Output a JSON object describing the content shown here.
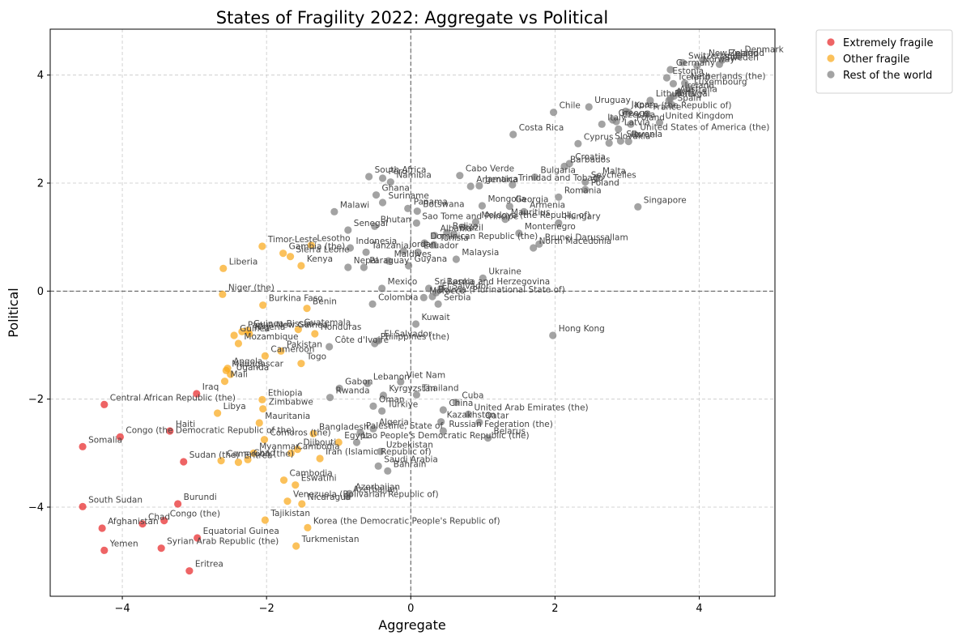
{
  "chart_data": {
    "type": "scatter",
    "title": "States of Fragility 2022: Aggregate vs Political",
    "xlabel": "Aggregate",
    "ylabel": "Political",
    "xlim": [
      -5.0,
      5.05
    ],
    "ylim": [
      -5.65,
      4.85
    ],
    "xticks": [
      -4,
      -2,
      0,
      2,
      4
    ],
    "yticks": [
      -4,
      -2,
      0,
      2,
      4
    ],
    "grid": true,
    "legend_position": "upper-right-outside",
    "zero_lines": true,
    "colors": {
      "Extremely fragile": "#e8282a",
      "Other fragile": "#f9a91c",
      "Rest of the world": "#808080"
    },
    "series": [
      {
        "name": "Extremely fragile",
        "color": "#e8282a",
        "points": [
          {
            "label": "Somalia",
            "x": -4.55,
            "y": -2.88
          },
          {
            "label": "South Sudan",
            "x": -4.55,
            "y": -3.99
          },
          {
            "label": "Central African Republic (the)",
            "x": -4.25,
            "y": -2.1
          },
          {
            "label": "Congo (the Democratic Republic of the)",
            "x": -4.03,
            "y": -2.7
          },
          {
            "label": "Afghanistan",
            "x": -4.28,
            "y": -4.39
          },
          {
            "label": "Yemen",
            "x": -4.25,
            "y": -4.8
          },
          {
            "label": "Chad",
            "x": -3.72,
            "y": -4.31
          },
          {
            "label": "Congo (the)",
            "x": -3.42,
            "y": -4.25
          },
          {
            "label": "Syrian Arab Republic (the)",
            "x": -3.46,
            "y": -4.76
          },
          {
            "label": "Haiti",
            "x": -3.34,
            "y": -2.59
          },
          {
            "label": "Sudan (the)",
            "x": -3.15,
            "y": -3.16
          },
          {
            "label": "Burundi",
            "x": -3.23,
            "y": -3.94
          },
          {
            "label": "Iraq",
            "x": -2.97,
            "y": -1.9
          },
          {
            "label": "Eritrea",
            "x": -3.07,
            "y": -5.18
          },
          {
            "label": "Equatorial Guinea",
            "x": -2.96,
            "y": -4.57
          }
        ]
      },
      {
        "name": "Other fragile",
        "color": "#f9a91c",
        "points": [
          {
            "label": "Liberia",
            "x": -2.6,
            "y": 0.42
          },
          {
            "label": "Niger (the)",
            "x": -2.61,
            "y": -0.06
          },
          {
            "label": "Timor-Leste",
            "x": -2.06,
            "y": 0.83
          },
          {
            "label": "Gambia (the)",
            "x": -1.77,
            "y": 0.7
          },
          {
            "label": "Lesotho",
            "x": -1.38,
            "y": 0.85
          },
          {
            "label": "Sierra Leone",
            "x": -1.67,
            "y": 0.64
          },
          {
            "label": "Kenya",
            "x": -1.52,
            "y": 0.47
          },
          {
            "label": "Burkina Faso",
            "x": -2.05,
            "y": -0.26
          },
          {
            "label": "Benin",
            "x": -1.44,
            "y": -0.32
          },
          {
            "label": "Guinea-Bissau",
            "x": -2.26,
            "y": -0.73
          },
          {
            "label": "Papua New Guinea",
            "x": -2.34,
            "y": -0.75
          },
          {
            "label": "Guinea",
            "x": -2.45,
            "y": -0.82
          },
          {
            "label": "Guatemala",
            "x": -1.56,
            "y": -0.71
          },
          {
            "label": "Mozambique",
            "x": -2.39,
            "y": -0.97
          },
          {
            "label": "Nigeria",
            "x": -2.24,
            "y": -0.79
          },
          {
            "label": "Honduras",
            "x": -1.33,
            "y": -0.79
          },
          {
            "label": "Cameroon",
            "x": -2.02,
            "y": -1.2
          },
          {
            "label": "Pakistan",
            "x": -1.8,
            "y": -1.11
          },
          {
            "label": "Togo",
            "x": -1.52,
            "y": -1.34
          },
          {
            "label": "Madagascar",
            "x": -2.56,
            "y": -1.47
          },
          {
            "label": "Angola",
            "x": -2.54,
            "y": -1.43
          },
          {
            "label": "Uganda",
            "x": -2.5,
            "y": -1.54
          },
          {
            "label": "Mali",
            "x": -2.58,
            "y": -1.67
          },
          {
            "label": "Ethiopia",
            "x": -2.06,
            "y": -2.01
          },
          {
            "label": "Zimbabwe",
            "x": -2.05,
            "y": -2.18
          },
          {
            "label": "Libya",
            "x": -2.68,
            "y": -2.26
          },
          {
            "label": "Mauritania",
            "x": -2.1,
            "y": -2.44
          },
          {
            "label": "Bangladesh",
            "x": -1.35,
            "y": -2.64
          },
          {
            "label": "Egypt",
            "x": -1.0,
            "y": -2.8
          },
          {
            "label": "Comoros (the)",
            "x": -2.03,
            "y": -2.75
          },
          {
            "label": "Djibouti",
            "x": -1.57,
            "y": -2.93
          },
          {
            "label": "Cambodia",
            "x": -1.66,
            "y": -3.0
          },
          {
            "label": "Myanmar",
            "x": -2.18,
            "y": -3.0
          },
          {
            "label": "Iran (Islamic Republic of)",
            "x": -1.26,
            "y": -3.1
          },
          {
            "label": "Cameroon (the)",
            "x": -2.63,
            "y": -3.14
          },
          {
            "label": "Eritrea (other)",
            "x": -2.39,
            "y": -3.17
          },
          {
            "label": "Chad (other)",
            "x": -2.26,
            "y": -3.12
          },
          {
            "label": "Eswatini",
            "x": -1.6,
            "y": -3.59
          },
          {
            "label": "Cambodia (2)",
            "x": -1.76,
            "y": -3.5
          },
          {
            "label": "Venezuela (Bolivarian Republic of)",
            "x": -1.71,
            "y": -3.89
          },
          {
            "label": "Nicaragua",
            "x": -1.51,
            "y": -3.94
          },
          {
            "label": "Tajikistan",
            "x": -2.02,
            "y": -4.24
          },
          {
            "label": "Korea (the Democratic People's Republic of)",
            "x": -1.43,
            "y": -4.38
          },
          {
            "label": "Turkmenistan",
            "x": -1.59,
            "y": -4.72
          }
        ]
      },
      {
        "name": "Rest of the world",
        "color": "#808080",
        "points": [
          {
            "label": "Denmark",
            "x": 4.55,
            "y": 4.35
          },
          {
            "label": "Finland",
            "x": 4.32,
            "y": 4.28
          },
          {
            "label": "New Zealand",
            "x": 4.05,
            "y": 4.28
          },
          {
            "label": "Sweden",
            "x": 4.28,
            "y": 4.2
          },
          {
            "label": "Norway",
            "x": 3.97,
            "y": 4.17
          },
          {
            "label": "Switzerland",
            "x": 3.77,
            "y": 4.23
          },
          {
            "label": "Germany",
            "x": 3.6,
            "y": 4.1
          },
          {
            "label": "Estonia",
            "x": 3.55,
            "y": 3.95
          },
          {
            "label": "Netherlands (the)",
            "x": 3.8,
            "y": 3.85
          },
          {
            "label": "Iceland",
            "x": 3.64,
            "y": 3.84
          },
          {
            "label": "Luxembourg",
            "x": 3.85,
            "y": 3.75
          },
          {
            "label": "Ireland",
            "x": 3.72,
            "y": 3.68
          },
          {
            "label": "Australia",
            "x": 3.65,
            "y": 3.61
          },
          {
            "label": "Austria",
            "x": 3.6,
            "y": 3.57
          },
          {
            "label": "Portugal",
            "x": 3.58,
            "y": 3.53
          },
          {
            "label": "Lithuania",
            "x": 3.32,
            "y": 3.53
          },
          {
            "label": "Spain",
            "x": 3.62,
            "y": 3.45
          },
          {
            "label": "Korea (the Republic of)",
            "x": 3.02,
            "y": 3.31
          },
          {
            "label": "Uruguay",
            "x": 2.47,
            "y": 3.41
          },
          {
            "label": "Japan",
            "x": 2.98,
            "y": 3.33
          },
          {
            "label": "France",
            "x": 3.28,
            "y": 3.28
          },
          {
            "label": "Chile",
            "x": 1.98,
            "y": 3.31
          },
          {
            "label": "Greece",
            "x": 2.8,
            "y": 3.17
          },
          {
            "label": "Czechia",
            "x": 2.85,
            "y": 3.14
          },
          {
            "label": "Poland (2)",
            "x": 3.05,
            "y": 3.09
          },
          {
            "label": "Italy",
            "x": 2.65,
            "y": 3.09
          },
          {
            "label": "Latvia",
            "x": 2.88,
            "y": 3.0
          },
          {
            "label": "United Kingdom",
            "x": 3.45,
            "y": 3.12
          },
          {
            "label": "Costa Rica",
            "x": 1.42,
            "y": 2.9
          },
          {
            "label": "United States of America (the)",
            "x": 3.1,
            "y": 2.91
          },
          {
            "label": "Israel",
            "x": 3.02,
            "y": 2.77
          },
          {
            "label": "Slovenia",
            "x": 2.91,
            "y": 2.78
          },
          {
            "label": "Slovakia",
            "x": 2.75,
            "y": 2.74
          },
          {
            "label": "Cyprus",
            "x": 2.32,
            "y": 2.73
          },
          {
            "label": "Croatia",
            "x": 2.2,
            "y": 2.36
          },
          {
            "label": "Barbados",
            "x": 2.13,
            "y": 2.31
          },
          {
            "label": "South Africa",
            "x": -0.58,
            "y": 2.12
          },
          {
            "label": "Peru",
            "x": -0.39,
            "y": 2.09
          },
          {
            "label": "Namibia",
            "x": -0.28,
            "y": 2.02
          },
          {
            "label": "Cabo Verde",
            "x": 0.68,
            "y": 2.14
          },
          {
            "label": "Argentina",
            "x": 0.83,
            "y": 1.94
          },
          {
            "label": "Jamaica",
            "x": 0.95,
            "y": 1.95
          },
          {
            "label": "Trinidad and Tobago",
            "x": 1.41,
            "y": 1.97
          },
          {
            "label": "Bulgaria",
            "x": 1.72,
            "y": 2.11
          },
          {
            "label": "Malta",
            "x": 2.58,
            "y": 2.1
          },
          {
            "label": "Seychelles",
            "x": 2.42,
            "y": 2.02
          },
          {
            "label": "Poland",
            "x": 2.42,
            "y": 1.88
          },
          {
            "label": "Romania",
            "x": 2.05,
            "y": 1.74
          },
          {
            "label": "Ghana",
            "x": -0.48,
            "y": 1.78
          },
          {
            "label": "Suriname",
            "x": -0.39,
            "y": 1.64
          },
          {
            "label": "Malawi",
            "x": -1.06,
            "y": 1.47
          },
          {
            "label": "Panama",
            "x": -0.04,
            "y": 1.53
          },
          {
            "label": "Botswana",
            "x": 0.09,
            "y": 1.48
          },
          {
            "label": "Mongolia",
            "x": 0.99,
            "y": 1.58
          },
          {
            "label": "Georgia",
            "x": 1.37,
            "y": 1.57
          },
          {
            "label": "Armenia",
            "x": 1.57,
            "y": 1.47
          },
          {
            "label": "Mauritius",
            "x": 1.31,
            "y": 1.33
          },
          {
            "label": "Moldova (the Republic of)",
            "x": 0.9,
            "y": 1.28
          },
          {
            "label": "Hungary",
            "x": 2.05,
            "y": 1.26
          },
          {
            "label": "Singapore",
            "x": 3.15,
            "y": 1.56
          },
          {
            "label": "Senegal",
            "x": -0.87,
            "y": 1.13
          },
          {
            "label": "Sao Tome and Principe",
            "x": 0.08,
            "y": 1.26
          },
          {
            "label": "Bhutan",
            "x": -0.5,
            "y": 1.2
          },
          {
            "label": "Albania",
            "x": 0.33,
            "y": 1.03
          },
          {
            "label": "Belize",
            "x": 0.5,
            "y": 1.08
          },
          {
            "label": "Brazil",
            "x": 0.6,
            "y": 1.05
          },
          {
            "label": "Montenegro",
            "x": 1.5,
            "y": 1.07
          },
          {
            "label": "Dominican Republic (the)",
            "x": 0.19,
            "y": 0.89
          },
          {
            "label": "Tunisia",
            "x": 0.32,
            "y": 0.86
          },
          {
            "label": "Indonesia",
            "x": -0.84,
            "y": 0.8
          },
          {
            "label": "Tanzania",
            "x": -0.62,
            "y": 0.72
          },
          {
            "label": "Jordan",
            "x": -0.1,
            "y": 0.74
          },
          {
            "label": "Ecuador",
            "x": 0.1,
            "y": 0.72
          },
          {
            "label": "North Macedonia",
            "x": 1.7,
            "y": 0.8
          },
          {
            "label": "Brunei Darussallam",
            "x": 1.78,
            "y": 0.87
          },
          {
            "label": "Malaysia",
            "x": 0.63,
            "y": 0.59
          },
          {
            "label": "Nepal",
            "x": -0.87,
            "y": 0.44
          },
          {
            "label": "Paraguay",
            "x": -0.65,
            "y": 0.44
          },
          {
            "label": "Maldives",
            "x": -0.31,
            "y": 0.56
          },
          {
            "label": "Guyana",
            "x": -0.03,
            "y": 0.47
          },
          {
            "label": "Ukraine",
            "x": 1.0,
            "y": 0.24
          },
          {
            "label": "Mexico",
            "x": -0.4,
            "y": 0.05
          },
          {
            "label": "Sri Lanka",
            "x": 0.25,
            "y": 0.05
          },
          {
            "label": "Bosnia and Herzegovina",
            "x": 0.42,
            "y": 0.05
          },
          {
            "label": "El Salvador (2)",
            "x": 0.35,
            "y": -0.03
          },
          {
            "label": "Bolivia (Plurinational State of)",
            "x": 0.3,
            "y": -0.1
          },
          {
            "label": "Morocco",
            "x": 0.18,
            "y": -0.12
          },
          {
            "label": "Colombia",
            "x": -0.53,
            "y": -0.24
          },
          {
            "label": "Serbia",
            "x": 0.38,
            "y": -0.24
          },
          {
            "label": "Kuwait",
            "x": 0.07,
            "y": -0.61
          },
          {
            "label": "Philippines (the)",
            "x": -0.5,
            "y": -0.97
          },
          {
            "label": "El Salvador",
            "x": -0.45,
            "y": -0.92
          },
          {
            "label": "Hong Kong",
            "x": 1.97,
            "y": -0.82
          },
          {
            "label": "Côte d'Ivoire",
            "x": -1.13,
            "y": -1.03
          },
          {
            "label": "Lebanon",
            "x": -0.6,
            "y": -1.71
          },
          {
            "label": "Viet Nam",
            "x": -0.14,
            "y": -1.68
          },
          {
            "label": "Gabon",
            "x": -0.99,
            "y": -1.8
          },
          {
            "label": "Kyrgyzstan",
            "x": -0.38,
            "y": -1.93
          },
          {
            "label": "Thailand",
            "x": 0.08,
            "y": -1.92
          },
          {
            "label": "Rwanda",
            "x": -1.12,
            "y": -1.97
          },
          {
            "label": "Oman",
            "x": -0.52,
            "y": -2.13
          },
          {
            "label": "Türkiye",
            "x": -0.4,
            "y": -2.22
          },
          {
            "label": "Cuba",
            "x": 0.63,
            "y": -2.06
          },
          {
            "label": "China",
            "x": 0.45,
            "y": -2.2
          },
          {
            "label": "United Arab Emirates (the)",
            "x": 0.8,
            "y": -2.28
          },
          {
            "label": "Kazakhstan",
            "x": 0.42,
            "y": -2.42
          },
          {
            "label": "Qatar",
            "x": 0.95,
            "y": -2.43
          },
          {
            "label": "Russian Federation (the)",
            "x": 0.45,
            "y": -2.59
          },
          {
            "label": "Palestine, State of",
            "x": -0.7,
            "y": -2.62
          },
          {
            "label": "Algeria",
            "x": -0.52,
            "y": -2.55
          },
          {
            "label": "Lao People's Democratic Republic (the)",
            "x": -0.75,
            "y": -2.8
          },
          {
            "label": "Belarus",
            "x": 1.07,
            "y": -2.72
          },
          {
            "label": "Uzbekistan",
            "x": -0.42,
            "y": -2.97
          },
          {
            "label": "Saudi Arabia",
            "x": -0.45,
            "y": -3.24
          },
          {
            "label": "Bahrain",
            "x": -0.32,
            "y": -3.33
          },
          {
            "label": "Azerbaijan",
            "x": -0.85,
            "y": -3.75
          },
          {
            "label": "Azerbaijan (2)",
            "x": -0.88,
            "y": -3.8
          }
        ]
      }
    ]
  }
}
